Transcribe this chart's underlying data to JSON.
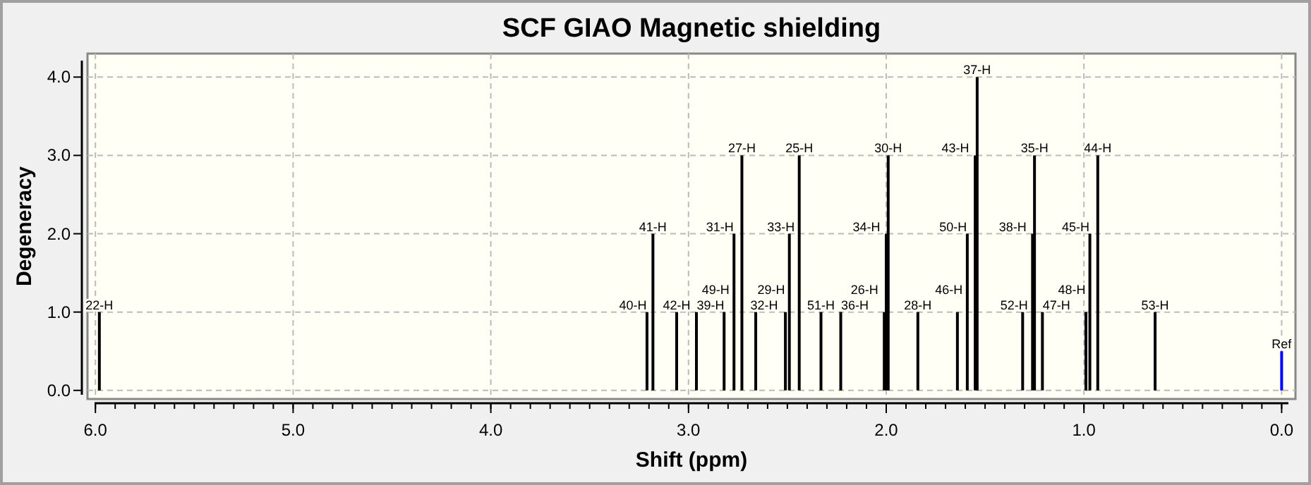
{
  "chart_data": {
    "type": "bar",
    "title": "SCF GIAO Magnetic shielding",
    "xlabel": "Shift (ppm)",
    "ylabel": "Degeneracy",
    "x": [
      5.98,
      3.21,
      3.18,
      3.06,
      2.96,
      2.82,
      2.77,
      2.73,
      2.66,
      2.51,
      2.49,
      2.44,
      2.33,
      2.23,
      2.01,
      2.0,
      1.99,
      1.84,
      1.64,
      1.59,
      1.55,
      1.54,
      1.31,
      1.26,
      1.25,
      1.21,
      0.99,
      0.97,
      0.93,
      0.64,
      0.0
    ],
    "values": [
      1,
      1,
      2,
      1,
      1,
      1,
      2,
      3,
      1,
      1,
      2,
      3,
      1,
      1,
      1,
      2,
      3,
      1,
      1,
      2,
      3,
      4,
      1,
      2,
      3,
      1,
      1,
      2,
      3,
      1,
      0.5
    ],
    "colors": [
      "#000000",
      "#000000",
      "#000000",
      "#000000",
      "#000000",
      "#000000",
      "#000000",
      "#000000",
      "#000000",
      "#000000",
      "#000000",
      "#000000",
      "#000000",
      "#000000",
      "#000000",
      "#000000",
      "#000000",
      "#000000",
      "#000000",
      "#000000",
      "#000000",
      "#000000",
      "#000000",
      "#000000",
      "#000000",
      "#000000",
      "#000000",
      "#000000",
      "#000000",
      "#000000",
      "#0000ff"
    ],
    "annotations": [
      {
        "text": "22-H",
        "x": 5.98,
        "y": 1
      },
      {
        "text": "40-H",
        "x": 3.21,
        "y": 1
      },
      {
        "text": "41-H",
        "x": 3.18,
        "y": 2
      },
      {
        "text": "42-H",
        "x": 3.06,
        "y": 1
      },
      {
        "text": "39-H",
        "x": 2.96,
        "y": 1
      },
      {
        "text": "49-H",
        "x": 2.82,
        "y": 1
      },
      {
        "text": "31-H",
        "x": 2.77,
        "y": 2
      },
      {
        "text": "27-H",
        "x": 2.73,
        "y": 3
      },
      {
        "text": "32-H",
        "x": 2.66,
        "y": 1
      },
      {
        "text": "29-H",
        "x": 2.51,
        "y": 1
      },
      {
        "text": "33-H",
        "x": 2.49,
        "y": 2
      },
      {
        "text": "25-H",
        "x": 2.44,
        "y": 3
      },
      {
        "text": "51-H",
        "x": 2.33,
        "y": 1
      },
      {
        "text": "36-H",
        "x": 2.23,
        "y": 1
      },
      {
        "text": "26-H",
        "x": 2.01,
        "y": 1
      },
      {
        "text": "34-H",
        "x": 2.0,
        "y": 2
      },
      {
        "text": "30-H",
        "x": 1.99,
        "y": 3
      },
      {
        "text": "28-H",
        "x": 1.84,
        "y": 1
      },
      {
        "text": "46-H",
        "x": 1.64,
        "y": 1
      },
      {
        "text": "50-H",
        "x": 1.59,
        "y": 2
      },
      {
        "text": "43-H",
        "x": 1.55,
        "y": 3
      },
      {
        "text": "37-H",
        "x": 1.54,
        "y": 4
      },
      {
        "text": "52-H",
        "x": 1.31,
        "y": 1
      },
      {
        "text": "38-H",
        "x": 1.26,
        "y": 2
      },
      {
        "text": "35-H",
        "x": 1.25,
        "y": 3
      },
      {
        "text": "47-H",
        "x": 1.21,
        "y": 1
      },
      {
        "text": "48-H",
        "x": 0.99,
        "y": 1
      },
      {
        "text": "45-H",
        "x": 0.97,
        "y": 2
      },
      {
        "text": "44-H",
        "x": 0.93,
        "y": 3
      },
      {
        "text": "53-H",
        "x": 0.64,
        "y": 1
      },
      {
        "text": "Ref",
        "x": 0.0,
        "y": 0.5
      }
    ],
    "xlim": [
      6.04,
      -0.07
    ],
    "xticks": [
      {
        "value": 6,
        "label": "6.0"
      },
      {
        "value": 5,
        "label": "5.0"
      },
      {
        "value": 4,
        "label": "4.0"
      },
      {
        "value": 3,
        "label": "3.0"
      },
      {
        "value": 2,
        "label": "2.0"
      },
      {
        "value": 1,
        "label": "1.0"
      },
      {
        "value": 0,
        "label": "0.0"
      }
    ],
    "ylim": [
      -0.11,
      4.3
    ],
    "yticks": [
      {
        "value": 0,
        "label": "0.0"
      },
      {
        "value": 1,
        "label": "1.0"
      },
      {
        "value": 2,
        "label": "2.0"
      },
      {
        "value": 3,
        "label": "3.0"
      },
      {
        "value": 4,
        "label": "4.0"
      }
    ],
    "grid": true
  }
}
